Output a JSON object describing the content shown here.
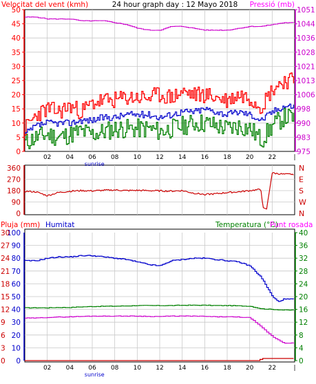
{
  "header": {
    "wind_title": "Velocitat del vent (kmh)",
    "graph_title": "24 hour graph day : 12 Mayo 2018",
    "pressure_title": "Pressió (mb)"
  },
  "bottom_labels": {
    "rain": "Pluja (mm)",
    "humidity": "Humitat",
    "temperature": "Temperatura (°C)",
    "dewpoint": "Punt rosada"
  },
  "colors": {
    "gust": "#ff0000",
    "avg": "#0000cc",
    "low": "#008000",
    "pressure": "#cc00cc",
    "direction": "#cc0000",
    "humidity": "#0000cc",
    "temperature": "#008000",
    "dewpoint": "#cc00cc",
    "rain": "#cc0000",
    "grid": "#c8c8c8"
  },
  "chart_data": [
    {
      "type": "line",
      "panel": "wind-pressure",
      "x_ticks": [
        "02",
        "04",
        "06",
        "08",
        "10",
        "12",
        "14",
        "16",
        "18",
        "20",
        "22",
        "|"
      ],
      "x_annotation": "sunrise",
      "left_axis": {
        "label": "Velocitat del vent (kmh)",
        "ticks": [
          0,
          5,
          10,
          15,
          20,
          25,
          30,
          35,
          40,
          45,
          50
        ],
        "ylim": [
          0,
          50
        ]
      },
      "right_axis": {
        "label": "Pressió (mb)",
        "ticks": [
          "975",
          "983",
          "990",
          "998",
          "1006",
          "1013",
          "1021",
          "1028",
          "1036",
          "1044",
          "1051"
        ],
        "ylim": [
          975,
          1051
        ]
      },
      "series": [
        {
          "key": "gust",
          "x": [
            0,
            1,
            2,
            3,
            4,
            5,
            6,
            7,
            8,
            9,
            10,
            11,
            12,
            13,
            14,
            15,
            16,
            17,
            18,
            19,
            20,
            21,
            22,
            23
          ],
          "values": [
            8,
            13,
            15,
            14,
            16,
            14,
            17,
            18,
            18,
            19,
            19,
            19,
            20,
            19,
            21,
            20,
            20,
            19,
            18,
            20,
            19,
            16,
            22,
            25
          ]
        },
        {
          "key": "avg",
          "x": [
            0,
            1,
            2,
            3,
            4,
            5,
            6,
            7,
            8,
            9,
            10,
            11,
            12,
            13,
            14,
            15,
            16,
            17,
            18,
            19,
            20,
            21,
            22,
            23
          ],
          "values": [
            6,
            9,
            10,
            10,
            10,
            11,
            11,
            12,
            12,
            13,
            13,
            13,
            12,
            13,
            14,
            14,
            15,
            14,
            13,
            14,
            13,
            11,
            14,
            16
          ]
        },
        {
          "key": "low",
          "x": [
            0,
            1,
            2,
            3,
            4,
            5,
            6,
            7,
            8,
            9,
            10,
            11,
            12,
            13,
            14,
            15,
            16,
            17,
            18,
            19,
            20,
            21,
            22,
            23
          ],
          "values": [
            3,
            5,
            6,
            5,
            6,
            7,
            6,
            7,
            8,
            8,
            8,
            8,
            7,
            8,
            9,
            10,
            10,
            9,
            8,
            9,
            8,
            4,
            9,
            12
          ]
        },
        {
          "key": "pressure",
          "x": [
            0,
            1,
            2,
            3,
            4,
            5,
            6,
            7,
            8,
            9,
            10,
            11,
            12,
            13,
            14,
            15,
            16,
            17,
            18,
            19,
            20,
            21,
            22,
            23
          ],
          "values": [
            1047,
            1047,
            1046,
            1046,
            1046,
            1045,
            1045,
            1045,
            1044,
            1043,
            1041,
            1040,
            1040,
            1042,
            1042,
            1041,
            1040,
            1040,
            1040,
            1041,
            1042,
            1042,
            1043,
            1044
          ]
        }
      ]
    },
    {
      "type": "line",
      "panel": "wind-direction",
      "left_axis": {
        "ticks": [
          0,
          90,
          180,
          270,
          360
        ],
        "ylim": [
          0,
          360
        ]
      },
      "right_axis": {
        "ticks": [
          "N",
          "W",
          "S",
          "E",
          "N"
        ]
      },
      "series": [
        {
          "key": "direction",
          "x": [
            0,
            1,
            2,
            3,
            4,
            5,
            6,
            7,
            8,
            9,
            10,
            11,
            12,
            13,
            14,
            15,
            16,
            17,
            18,
            19,
            20,
            21,
            21.2,
            21.5,
            22,
            23
          ],
          "values": [
            175,
            170,
            140,
            165,
            175,
            180,
            178,
            182,
            185,
            180,
            182,
            180,
            178,
            176,
            180,
            160,
            150,
            155,
            165,
            170,
            180,
            190,
            40,
            30,
            320,
            310
          ]
        }
      ]
    },
    {
      "type": "line",
      "panel": "rain-humidity-temperature",
      "x_ticks": [
        "02",
        "04",
        "06",
        "08",
        "10",
        "12",
        "14",
        "16",
        "18",
        "20",
        "22",
        "|"
      ],
      "x_annotation": "sunrise",
      "rain_axis": {
        "label": "Pluja (mm)",
        "ticks": [
          0,
          3,
          6,
          9,
          12,
          15,
          18,
          21,
          24,
          27,
          30
        ],
        "ylim": [
          0,
          30
        ]
      },
      "humidity_axis": {
        "label": "Humitat",
        "ticks": [
          0,
          10,
          20,
          30,
          40,
          50,
          60,
          70,
          80,
          90,
          100
        ],
        "ylim": [
          0,
          100
        ]
      },
      "temperature_axis": {
        "label": "Temperatura (°C)",
        "ticks": [
          0,
          4,
          8,
          12,
          16,
          20,
          24,
          28,
          32,
          36,
          40
        ],
        "ylim": [
          0,
          40
        ]
      },
      "series": [
        {
          "key": "humidity",
          "x": [
            0,
            1,
            2,
            3,
            4,
            5,
            6,
            7,
            8,
            9,
            10,
            11,
            12,
            13,
            14,
            15,
            16,
            17,
            18,
            19,
            20,
            21,
            22,
            22.5,
            23
          ],
          "values": [
            78,
            78,
            80,
            81,
            81,
            82,
            82,
            81,
            80,
            79,
            77,
            75,
            74,
            78,
            79,
            80,
            80,
            79,
            78,
            77,
            74,
            65,
            50,
            46,
            48
          ]
        },
        {
          "key": "temperature",
          "x": [
            0,
            1,
            2,
            3,
            4,
            5,
            6,
            7,
            8,
            9,
            10,
            11,
            12,
            13,
            14,
            15,
            16,
            17,
            18,
            19,
            20,
            21,
            22,
            23
          ],
          "values": [
            16.5,
            16.5,
            16.5,
            16.6,
            16.6,
            16.8,
            16.9,
            17.0,
            17.0,
            17.1,
            17.2,
            17.2,
            17.2,
            17.2,
            17.3,
            17.3,
            17.3,
            17.2,
            17.2,
            17.1,
            17.0,
            16.2,
            16.0,
            15.8
          ]
        },
        {
          "key": "dewpoint",
          "x": [
            0,
            1,
            2,
            3,
            4,
            5,
            6,
            7,
            8,
            9,
            10,
            11,
            12,
            13,
            14,
            15,
            16,
            17,
            18,
            19,
            20,
            21,
            22,
            23
          ],
          "values": [
            13.3,
            13.3,
            13.5,
            13.6,
            13.7,
            13.8,
            13.9,
            13.9,
            13.9,
            13.9,
            13.9,
            13.8,
            13.8,
            13.9,
            13.9,
            13.9,
            13.8,
            13.7,
            13.7,
            13.6,
            13.4,
            10.5,
            7.5,
            5.5
          ]
        },
        {
          "key": "rain",
          "x": [
            0,
            5,
            10,
            15,
            20,
            20.8,
            21,
            23
          ],
          "values": [
            0,
            0,
            0,
            0,
            0,
            0,
            0.5,
            0.5
          ]
        }
      ]
    }
  ]
}
